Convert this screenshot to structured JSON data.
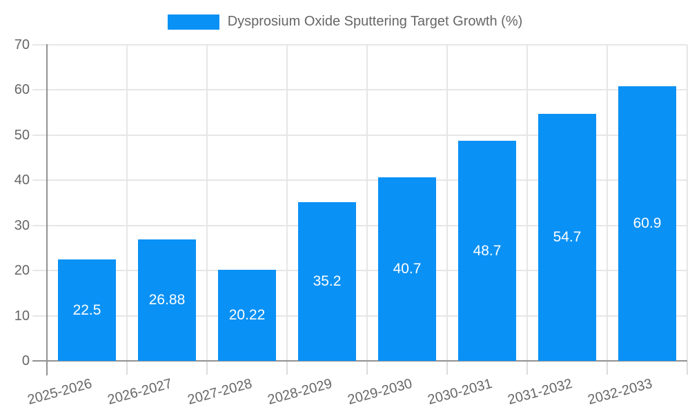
{
  "legend": {
    "items": [
      {
        "label": "Dysprosium Oxide Sputtering Target Growth (%)",
        "color": "#0a91f5"
      }
    ]
  },
  "chart_data": {
    "type": "bar",
    "title": "Dysprosium Oxide Sputtering Target Growth (%)",
    "categories": [
      "2025-2026",
      "2026-2027",
      "2027-2028",
      "2028-2029",
      "2029-2030",
      "2030-2031",
      "2031-2032",
      "2032-2033"
    ],
    "series": [
      {
        "name": "Dysprosium Oxide Sputtering Target Growth (%)",
        "color": "#0a91f5",
        "values": [
          22.5,
          26.88,
          20.22,
          35.2,
          40.7,
          48.7,
          54.7,
          60.9
        ]
      }
    ],
    "value_labels": [
      "22.5",
      "26.88",
      "20.22",
      "35.2",
      "40.7",
      "48.7",
      "54.7",
      "60.9"
    ],
    "xlabel": "",
    "ylabel": "",
    "ylim": [
      0,
      70
    ],
    "yticks": [
      0,
      10,
      20,
      30,
      40,
      50,
      60,
      70
    ],
    "grid": true,
    "legend_position": "top",
    "x_label_rotation_deg": -15
  },
  "colors": {
    "bar": "#0a91f5",
    "grid": "#e6e6e6",
    "tick": "#dcdcdc",
    "axis": "#919191",
    "axis_label": "#666666",
    "legend_text": "#666666",
    "value_label": "#ffffff",
    "background": "#ffffff"
  }
}
